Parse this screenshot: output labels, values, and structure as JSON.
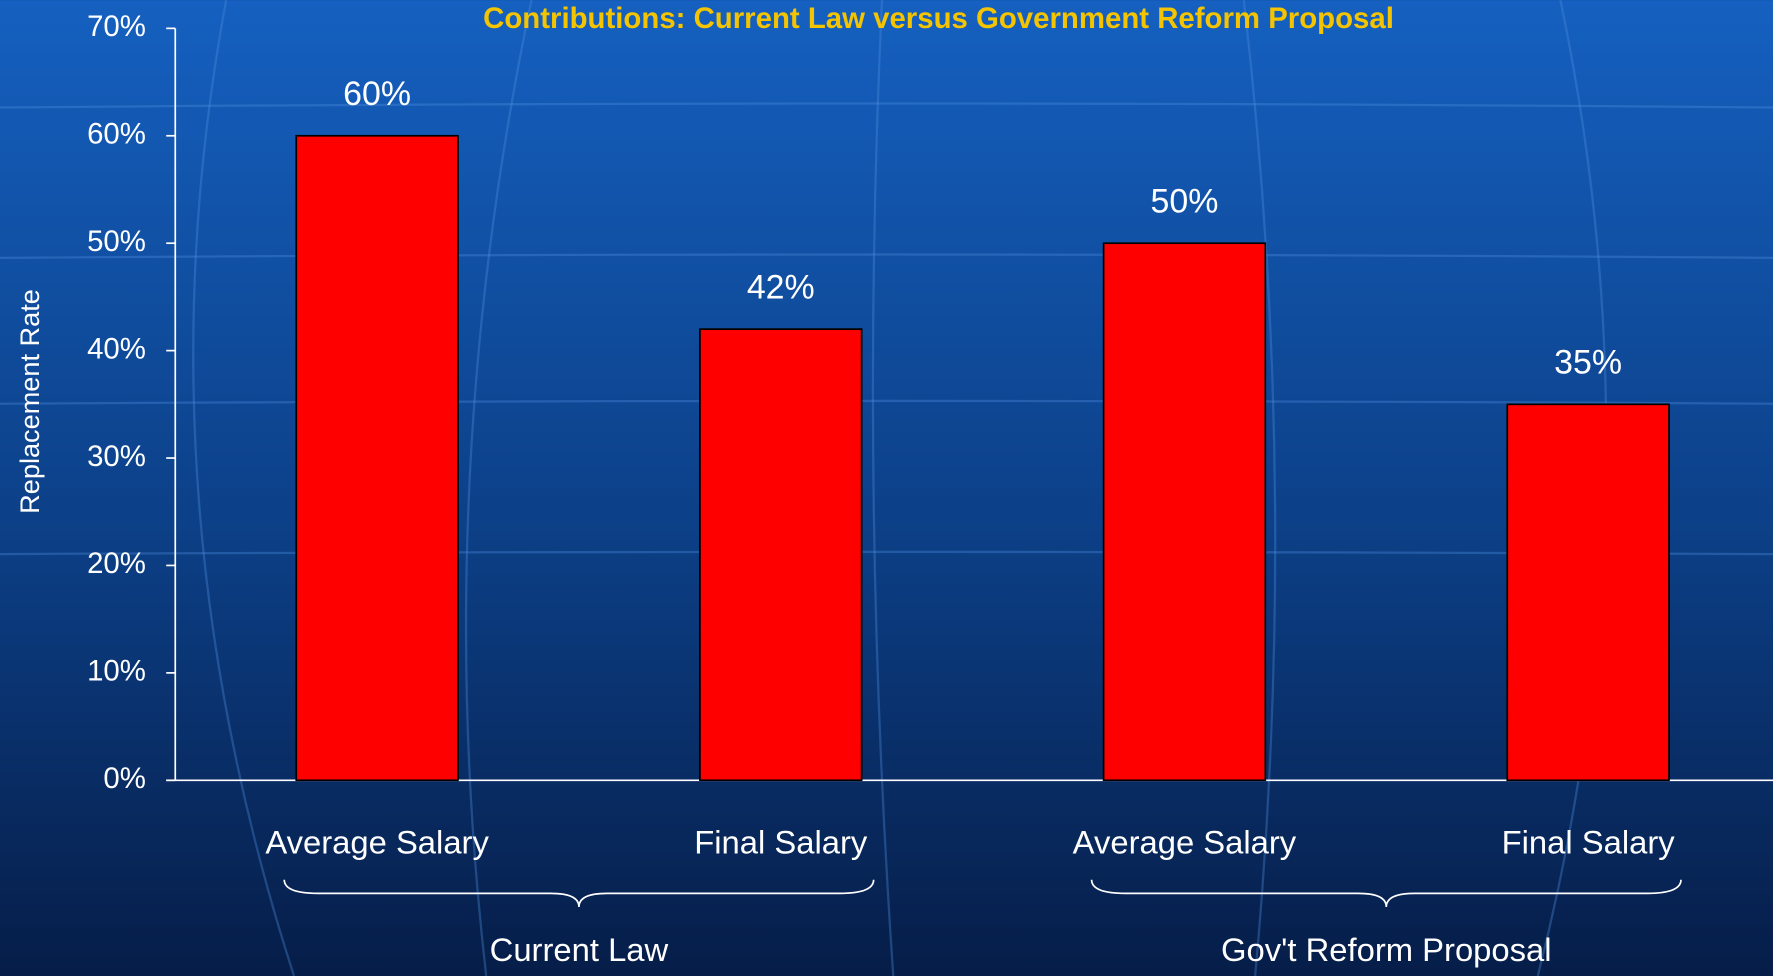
{
  "chart_data": {
    "type": "bar",
    "title": "Contributions: Current Law versus Government Reform Proposal",
    "y_label": "Replacement Rate",
    "categories": [
      "Average Salary",
      "Final Salary",
      "Average Salary",
      "Final Salary"
    ],
    "groups": [
      "Current Law",
      "Gov't Reform Proposal"
    ],
    "values": [
      60,
      42,
      50,
      35
    ],
    "value_labels": [
      "60%",
      "42%",
      "50%",
      "35%"
    ],
    "color": "#ff0000",
    "ylim": [
      0,
      70
    ],
    "yticks": [
      {
        "value": 0,
        "label": "0%"
      },
      {
        "value": 10,
        "label": "10%"
      },
      {
        "value": 20,
        "label": "20%"
      },
      {
        "value": 30,
        "label": "30%"
      },
      {
        "value": 40,
        "label": "40%"
      },
      {
        "value": 50,
        "label": "50%"
      },
      {
        "value": 60,
        "label": "60%"
      },
      {
        "value": 70,
        "label": "70%"
      }
    ],
    "grid": false
  }
}
